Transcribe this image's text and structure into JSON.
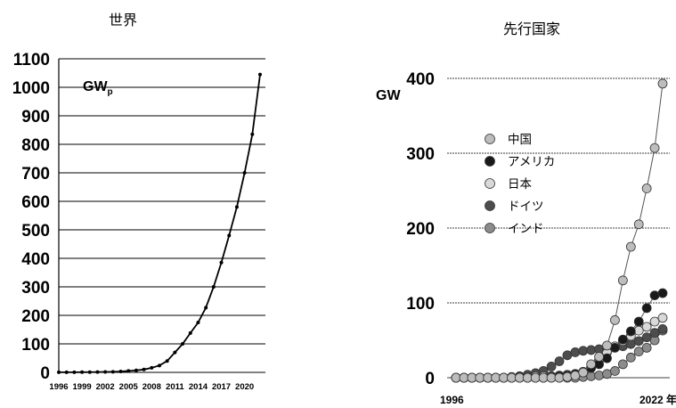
{
  "chart_data": [
    {
      "type": "line",
      "title": "世界",
      "unit_label": "GW",
      "unit_subscript": "p",
      "ylim": [
        0,
        1100
      ],
      "yticks": [
        "0",
        "100",
        "200",
        "300",
        "400",
        "500",
        "600",
        "700",
        "800",
        "900",
        "1000",
        "1100"
      ],
      "xticks": [
        "1996",
        "1999",
        "2002",
        "2005",
        "2008",
        "2011",
        "2014",
        "2017",
        "2020"
      ],
      "grid": "horizontal",
      "series": [
        {
          "x": [
            1996,
            1997,
            1998,
            1999,
            2000,
            2001,
            2002,
            2003,
            2004,
            2005,
            2006,
            2007,
            2008,
            2009,
            2010,
            2011,
            2012,
            2013,
            2014,
            2015,
            2016,
            2017,
            2018,
            2019,
            2020,
            2021,
            2022
          ],
          "values": [
            0.3,
            0.4,
            0.5,
            0.6,
            0.8,
            1,
            1.5,
            2,
            3,
            5,
            7,
            10,
            16,
            24,
            40,
            70,
            100,
            138,
            175,
            227,
            300,
            385,
            480,
            580,
            700,
            835,
            1045
          ]
        }
      ]
    },
    {
      "type": "line",
      "title": "先行国家",
      "unit_label": "GW",
      "ylim": [
        0,
        400
      ],
      "yticks": [
        "0",
        "100",
        "200",
        "300",
        "400"
      ],
      "xticks": [
        "1996",
        "2022 年"
      ],
      "grid": "horizontal",
      "legend": "left",
      "series": [
        {
          "name": "中国",
          "color": "#bdbdbd",
          "x": [
            1996,
            1997,
            1998,
            1999,
            2000,
            2001,
            2002,
            2003,
            2004,
            2005,
            2006,
            2007,
            2008,
            2009,
            2010,
            2011,
            2012,
            2013,
            2014,
            2015,
            2016,
            2017,
            2018,
            2019,
            2020,
            2021,
            2022
          ],
          "values": [
            0,
            0,
            0,
            0,
            0,
            0,
            0,
            0,
            0,
            0,
            0,
            0,
            0,
            0,
            1,
            3,
            7,
            18,
            28,
            43,
            77,
            130,
            175,
            205,
            253,
            307,
            393
          ]
        },
        {
          "name": "アメリカ",
          "color": "#1a1a1a",
          "x": [
            1996,
            1997,
            1998,
            1999,
            2000,
            2001,
            2002,
            2003,
            2004,
            2005,
            2006,
            2007,
            2008,
            2009,
            2010,
            2011,
            2012,
            2013,
            2014,
            2015,
            2016,
            2017,
            2018,
            2019,
            2020,
            2021,
            2022
          ],
          "values": [
            0,
            0,
            0,
            0,
            0,
            0,
            0,
            0,
            0,
            0,
            0,
            0,
            1,
            2,
            3,
            5,
            8,
            13,
            18,
            26,
            40,
            51,
            62,
            75,
            93,
            110,
            113
          ]
        },
        {
          "name": "日本",
          "color": "#d9d9d9",
          "x": [
            1996,
            1997,
            1998,
            1999,
            2000,
            2001,
            2002,
            2003,
            2004,
            2005,
            2006,
            2007,
            2008,
            2009,
            2010,
            2011,
            2012,
            2013,
            2014,
            2015,
            2016,
            2017,
            2018,
            2019,
            2020,
            2021,
            2022
          ],
          "values": [
            0,
            0,
            0,
            0,
            0,
            0,
            0,
            0,
            1,
            1,
            2,
            2,
            2,
            3,
            4,
            5,
            7,
            14,
            24,
            34,
            42,
            49,
            56,
            63,
            68,
            75,
            80
          ]
        },
        {
          "name": "ドイツ",
          "color": "#4d4d4d",
          "x": [
            1996,
            1997,
            1998,
            1999,
            2000,
            2001,
            2002,
            2003,
            2004,
            2005,
            2006,
            2007,
            2008,
            2009,
            2010,
            2011,
            2012,
            2013,
            2014,
            2015,
            2016,
            2017,
            2018,
            2019,
            2020,
            2021,
            2022
          ],
          "values": [
            0,
            0,
            0,
            0,
            0,
            0,
            0,
            1,
            2,
            4,
            6,
            9,
            15,
            22,
            30,
            34,
            36,
            37,
            38,
            39,
            41,
            42,
            45,
            49,
            54,
            60,
            65
          ]
        },
        {
          "name": "インド",
          "color": "#8c8c8c",
          "x": [
            1996,
            1997,
            1998,
            1999,
            2000,
            2001,
            2002,
            2003,
            2004,
            2005,
            2006,
            2007,
            2008,
            2009,
            2010,
            2011,
            2012,
            2013,
            2014,
            2015,
            2016,
            2017,
            2018,
            2019,
            2020,
            2021,
            2022
          ],
          "values": [
            0,
            0,
            0,
            0,
            0,
            0,
            0,
            0,
            0,
            0,
            0,
            0,
            0,
            0,
            0,
            0,
            1,
            2,
            3,
            5,
            9,
            18,
            27,
            35,
            40,
            50,
            63
          ]
        }
      ]
    }
  ]
}
